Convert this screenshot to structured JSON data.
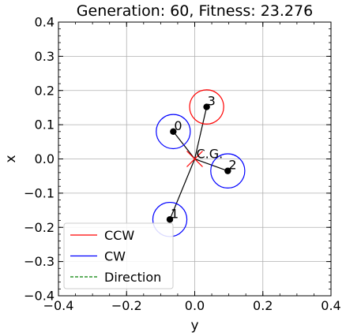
{
  "chart_data": {
    "type": "scatter",
    "title": "Generation: 60, Fitness: 23.276",
    "xlabel": "y",
    "ylabel": "x",
    "xlim": [
      -0.4,
      0.4
    ],
    "ylim": [
      -0.4,
      0.4
    ],
    "xticks": [
      -0.4,
      -0.2,
      0.0,
      0.2,
      0.4
    ],
    "xtick_labels": [
      "−0.4",
      "−0.2",
      "0.0",
      "0.2",
      "0.4"
    ],
    "yticks": [
      -0.4,
      -0.3,
      -0.2,
      -0.1,
      0.0,
      0.1,
      0.2,
      0.3,
      0.4
    ],
    "ytick_labels": [
      "−0.4",
      "−0.3",
      "−0.2",
      "−0.1",
      "0.0",
      "0.1",
      "0.2",
      "0.3",
      "0.4"
    ],
    "grid": true,
    "legend_position": "lower-left",
    "center_of_gravity": {
      "label": "C.G.",
      "x": 0.0,
      "y": 0.0,
      "color": "#ff0000"
    },
    "rotors": [
      {
        "label": "0",
        "x": -0.063,
        "y": 0.08,
        "radius": 0.05,
        "direction": "CW",
        "color": "#0000ff"
      },
      {
        "label": "1",
        "x": -0.073,
        "y": -0.177,
        "radius": 0.05,
        "direction": "CW",
        "color": "#0000ff"
      },
      {
        "label": "2",
        "x": 0.097,
        "y": -0.035,
        "radius": 0.05,
        "direction": "CW",
        "color": "#0000ff"
      },
      {
        "label": "3",
        "x": 0.035,
        "y": 0.152,
        "radius": 0.05,
        "direction": "CCW",
        "color": "#ff0000"
      }
    ],
    "legend": [
      {
        "label": "CCW",
        "color": "#ff0000",
        "style": "solid"
      },
      {
        "label": "CW",
        "color": "#0000ff",
        "style": "solid"
      },
      {
        "label": "Direction",
        "color": "#008000",
        "style": "dashed"
      }
    ]
  }
}
